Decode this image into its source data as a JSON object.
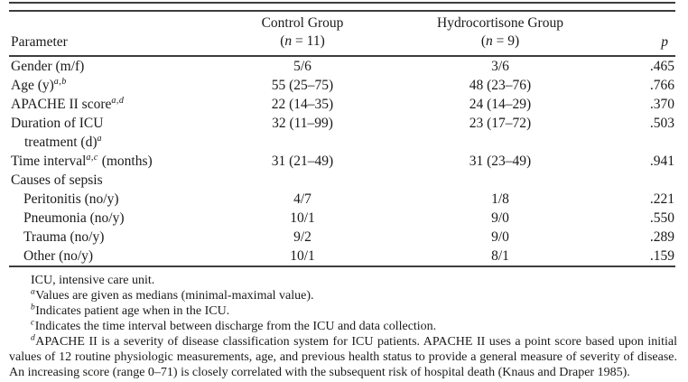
{
  "colors": {
    "text": "#1a1a1a",
    "rule": "#3d3d3d",
    "bg": "#ffffff"
  },
  "table": {
    "header": {
      "parameter_label": "Parameter",
      "control": {
        "title": "Control Group",
        "n_open": "(",
        "n_var": "n",
        "n_rest": " = 11)"
      },
      "hydrocortisone": {
        "title": "Hydrocortisone Group",
        "n_open": "(",
        "n_var": "n",
        "n_rest": " = 9)"
      },
      "p_label": "p"
    },
    "rows": [
      {
        "param": "Gender (m/f)",
        "sup": "",
        "param_suffix": "",
        "control": "5/6",
        "hydro": "3/6",
        "p": ".465",
        "indent": false
      },
      {
        "param": "Age (y)",
        "sup": "a,b",
        "param_suffix": "",
        "control": "55 (25–75)",
        "hydro": "48 (23–76)",
        "p": ".766",
        "indent": false
      },
      {
        "param": "APACHE II score",
        "sup": "a,d",
        "param_suffix": "",
        "control": "22 (14–35)",
        "hydro": "24 (14–29)",
        "p": ".370",
        "indent": false
      },
      {
        "param": "Duration of ICU",
        "sup": "",
        "param_suffix": "",
        "param_line2": "treatment (d)",
        "sup2": "a",
        "control": "32 (11–99)",
        "hydro": "23 (17–72)",
        "p": ".503",
        "indent": false
      },
      {
        "param": "Time interval",
        "sup": "a,c",
        "param_suffix": " (months)",
        "control": "31 (21–49)",
        "hydro": "31 (23–49)",
        "p": ".941",
        "indent": false
      },
      {
        "param": "Causes of sepsis",
        "sup": "",
        "param_suffix": "",
        "control": "",
        "hydro": "",
        "p": "",
        "indent": false
      },
      {
        "param": "Peritonitis (no/y)",
        "sup": "",
        "param_suffix": "",
        "control": "4/7",
        "hydro": "1/8",
        "p": ".221",
        "indent": true
      },
      {
        "param": "Pneumonia (no/y)",
        "sup": "",
        "param_suffix": "",
        "control": "10/1",
        "hydro": "9/0",
        "p": ".550",
        "indent": true
      },
      {
        "param": "Trauma (no/y)",
        "sup": "",
        "param_suffix": "",
        "control": "9/2",
        "hydro": "9/0",
        "p": ".289",
        "indent": true
      },
      {
        "param": "Other (no/y)",
        "sup": "",
        "param_suffix": "",
        "control": "10/1",
        "hydro": "8/1",
        "p": ".159",
        "indent": true
      }
    ]
  },
  "footnotes": {
    "abbreviation_note": "ICU, intensive care unit.",
    "items": [
      {
        "sup": "a",
        "text": "Values are given as medians (minimal-maximal value)."
      },
      {
        "sup": "b",
        "text": "Indicates patient age when in the ICU."
      },
      {
        "sup": "c",
        "text": "Indicates the time interval between discharge from the ICU and data collection."
      },
      {
        "sup": "d",
        "text": "APACHE II is a severity of disease classification system for ICU patients. APACHE II uses a point score based upon initial values of 12 routine physiologic measurements, age, and previous health status to provide a general measure of severity of disease. An increasing score (range 0–71) is closely correlated with the subsequent risk of hospital death (Knaus and Draper 1985)."
      }
    ]
  }
}
